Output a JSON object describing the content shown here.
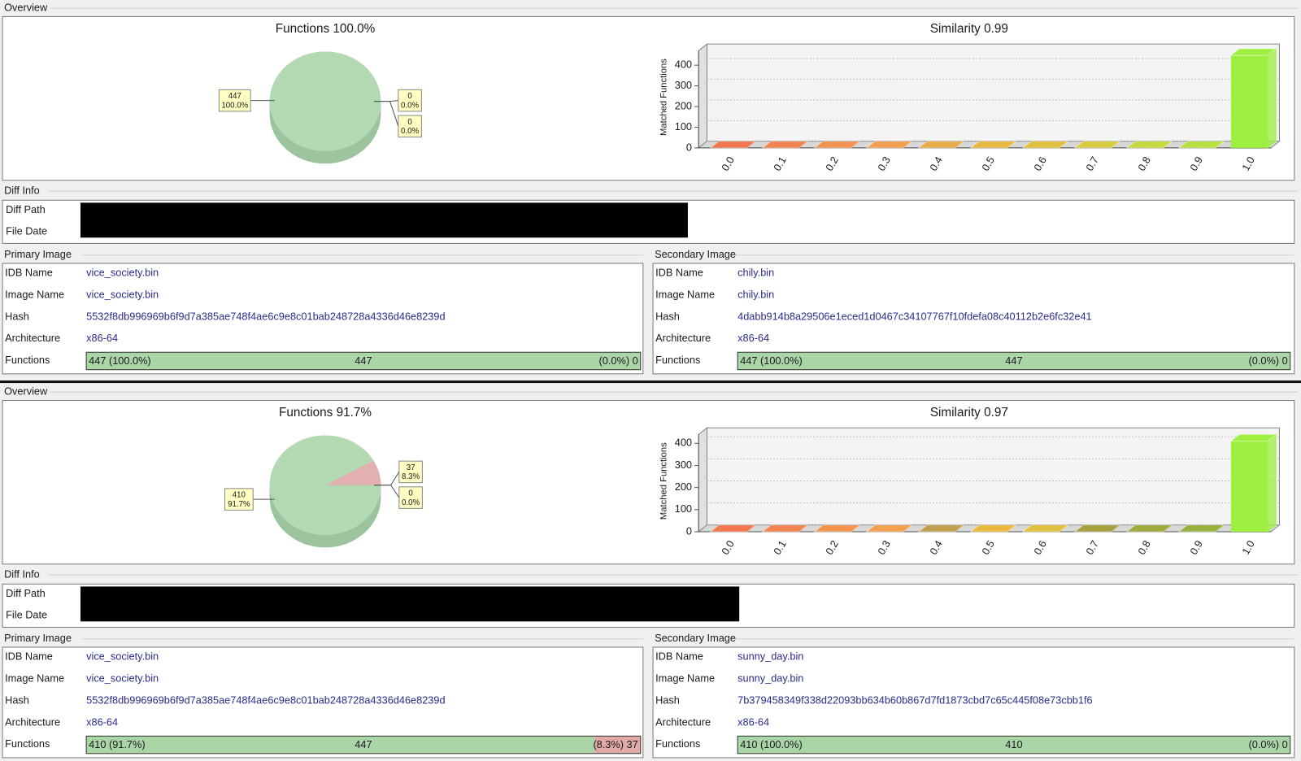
{
  "panels": [
    {
      "overview_label": "Overview",
      "pie": {
        "type": "pie",
        "title": "Functions 100.0%",
        "values": [
          447,
          0,
          0
        ],
        "percent_labels": [
          "100.0%",
          "0.0%",
          "0.0%"
        ],
        "colors": [
          "#b3d9b3",
          "#e2b0b0",
          "#c4d4c4"
        ]
      },
      "bar": {
        "type": "bar",
        "title": "Similarity 0.99",
        "y_label": "Matched Functions",
        "categories": [
          "0.0",
          "0.1",
          "0.2",
          "0.3",
          "0.4",
          "0.5",
          "0.6",
          "0.7",
          "0.8",
          "0.9",
          "1.0"
        ],
        "values": [
          0,
          0,
          0,
          0,
          0,
          0,
          0,
          0,
          0,
          0,
          447
        ],
        "colors": [
          "#f07850",
          "#f08450",
          "#f09450",
          "#f0a050",
          "#e8ac48",
          "#e8b840",
          "#e0c040",
          "#d8cc40",
          "#c8d840",
          "#b8e040",
          "#9ef040"
        ],
        "ylim": [
          0,
          470
        ],
        "yticks": [
          0,
          100,
          200,
          300,
          400
        ]
      },
      "diff_info": {
        "label": "Diff Info",
        "rows": [
          "Diff Path",
          "File Date"
        ]
      },
      "primary": {
        "label": "Primary Image",
        "rows": [
          [
            "IDB Name",
            "vice_society.bin"
          ],
          [
            "Image Name",
            "vice_society.bin"
          ],
          [
            "Hash",
            "5532f8db996969b6f9d7a385ae748f4ae6c9e8c01bab248728a4336d46e8239d"
          ],
          [
            "Architecture",
            "x86-64"
          ]
        ],
        "functions": {
          "label": "Functions",
          "matched": 447,
          "matched_label": "447 (100.0%)",
          "total": 447,
          "unmatched": 0,
          "unmatched_label": "(0.0%) 0"
        }
      },
      "secondary": {
        "label": "Secondary Image",
        "rows": [
          [
            "IDB Name",
            "chily.bin"
          ],
          [
            "Image Name",
            "chily.bin"
          ],
          [
            "Hash",
            "4dabb914b8a29506e1eced1d0467c34107767f10fdefa08c40112b2e6fc32e41"
          ],
          [
            "Architecture",
            "x86-64"
          ]
        ],
        "functions": {
          "label": "Functions",
          "matched": 447,
          "matched_label": "447 (100.0%)",
          "total": 447,
          "unmatched": 0,
          "unmatched_label": "(0.0%) 0"
        }
      }
    },
    {
      "overview_label": "Overview",
      "pie": {
        "type": "pie",
        "title": "Functions 91.7%",
        "values": [
          410,
          37,
          0
        ],
        "percent_labels": [
          "91.7%",
          "8.3%",
          "0.0%"
        ],
        "colors": [
          "#b3d9b3",
          "#e2b0b0",
          "#c4d4c4"
        ]
      },
      "bar": {
        "type": "bar",
        "title": "Similarity 0.97",
        "y_label": "Matched Functions",
        "categories": [
          "0.0",
          "0.1",
          "0.2",
          "0.3",
          "0.4",
          "0.5",
          "0.6",
          "0.7",
          "0.8",
          "0.9",
          "1.0"
        ],
        "values": [
          0,
          0,
          0,
          0,
          0,
          0,
          0,
          0,
          0,
          0,
          410
        ],
        "colors": [
          "#f07850",
          "#f08450",
          "#f09450",
          "#f0a050",
          "#c0a050",
          "#e8b840",
          "#e0c040",
          "#a8a040",
          "#a0a840",
          "#98b040",
          "#9ef040"
        ],
        "ylim": [
          0,
          440
        ],
        "yticks": [
          0,
          100,
          200,
          300,
          400
        ]
      },
      "diff_info": {
        "label": "Diff Info",
        "rows": [
          "Diff Path",
          "File Date"
        ]
      },
      "primary": {
        "label": "Primary Image",
        "rows": [
          [
            "IDB Name",
            "vice_society.bin"
          ],
          [
            "Image Name",
            "vice_society.bin"
          ],
          [
            "Hash",
            "5532f8db996969b6f9d7a385ae748f4ae6c9e8c01bab248728a4336d46e8239d"
          ],
          [
            "Architecture",
            "x86-64"
          ]
        ],
        "functions": {
          "label": "Functions",
          "matched": 410,
          "matched_label": "410 (91.7%)",
          "total": 447,
          "unmatched": 37,
          "unmatched_label": "(8.3%) 37"
        }
      },
      "secondary": {
        "label": "Secondary Image",
        "rows": [
          [
            "IDB Name",
            "sunny_day.bin"
          ],
          [
            "Image Name",
            "sunny_day.bin"
          ],
          [
            "Hash",
            "7b379458349f338d22093bb634b60b867d7fd1873cbd7c65c445f08e73cbb1f6"
          ],
          [
            "Architecture",
            "x86-64"
          ]
        ],
        "functions": {
          "label": "Functions",
          "matched": 410,
          "matched_label": "410 (100.0%)",
          "total": 410,
          "unmatched": 0,
          "unmatched_label": "(0.0%) 0"
        }
      }
    }
  ]
}
